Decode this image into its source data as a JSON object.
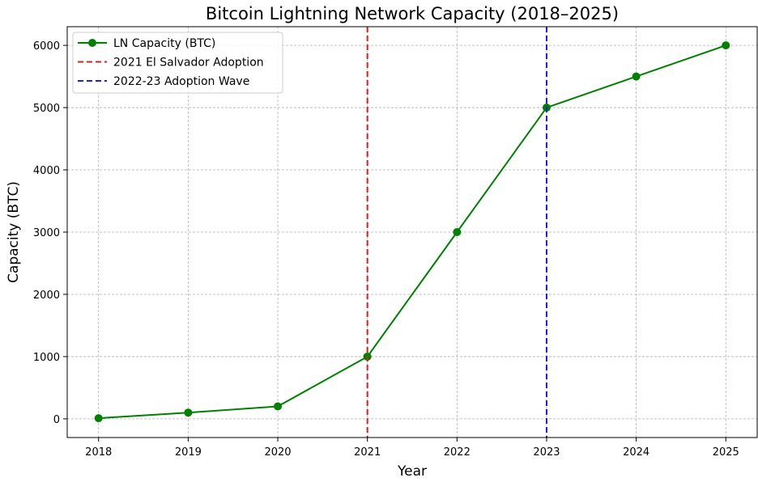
{
  "chart_data": {
    "type": "line",
    "title": "Bitcoin Lightning Network Capacity (2018–2025)",
    "xlabel": "Year",
    "ylabel": "Capacity (BTC)",
    "x": [
      2018,
      2019,
      2020,
      2021,
      2022,
      2023,
      2024,
      2025
    ],
    "series": [
      {
        "name": "LN Capacity (BTC)",
        "values": [
          10,
          100,
          200,
          1000,
          3000,
          5000,
          5500,
          6000
        ],
        "color": "#008000",
        "marker": "circle"
      }
    ],
    "vlines": [
      {
        "name": "2021 El Salvador Adoption",
        "x": 2021,
        "color": "#d62020",
        "style": "dashed"
      },
      {
        "name": "2022-23 Adoption Wave",
        "x": 2023,
        "color": "#1f1fd6",
        "style": "dashed"
      }
    ],
    "xlim": [
      2017.65,
      2025.35
    ],
    "ylim": [
      -300,
      6300
    ],
    "xticks": [
      "2018",
      "2019",
      "2020",
      "2021",
      "2022",
      "2023",
      "2024",
      "2025"
    ],
    "yticks": [
      "0",
      "1000",
      "2000",
      "3000",
      "4000",
      "5000",
      "6000"
    ],
    "grid": true,
    "legend_position": "top-left"
  }
}
